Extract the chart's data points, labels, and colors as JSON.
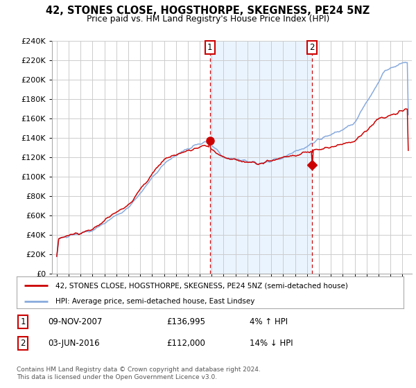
{
  "title": "42, STONES CLOSE, HOGSTHORPE, SKEGNESS, PE24 5NZ",
  "subtitle": "Price paid vs. HM Land Registry's House Price Index (HPI)",
  "ylabel_ticks": [
    "£0",
    "£20K",
    "£40K",
    "£60K",
    "£80K",
    "£100K",
    "£120K",
    "£140K",
    "£160K",
    "£180K",
    "£200K",
    "£220K",
    "£240K"
  ],
  "ylim": [
    0,
    240000
  ],
  "ytick_vals": [
    0,
    20000,
    40000,
    60000,
    80000,
    100000,
    120000,
    140000,
    160000,
    180000,
    200000,
    220000,
    240000
  ],
  "line1_color": "#cc0000",
  "line2_color": "#88aadd",
  "shade_color": "#ddeeff",
  "vline1_date": 2007.86,
  "vline2_date": 2016.42,
  "vline_color": "#cc0000",
  "marker1_val": 136995,
  "marker2_val": 112000,
  "legend_label1": "42, STONES CLOSE, HOGSTHORPE, SKEGNESS, PE24 5NZ (semi-detached house)",
  "legend_label2": "HPI: Average price, semi-detached house, East Lindsey",
  "table_rows": [
    {
      "num": "1",
      "date": "09-NOV-2007",
      "price": "£136,995",
      "change": "4% ↑ HPI"
    },
    {
      "num": "2",
      "date": "03-JUN-2016",
      "price": "£112,000",
      "change": "14% ↓ HPI"
    }
  ],
  "footer": "Contains HM Land Registry data © Crown copyright and database right 2024.\nThis data is licensed under the Open Government Licence v3.0.",
  "background_color": "#ffffff",
  "grid_color": "#cccccc",
  "xlim_left": 1994.6,
  "xlim_right": 2024.8
}
